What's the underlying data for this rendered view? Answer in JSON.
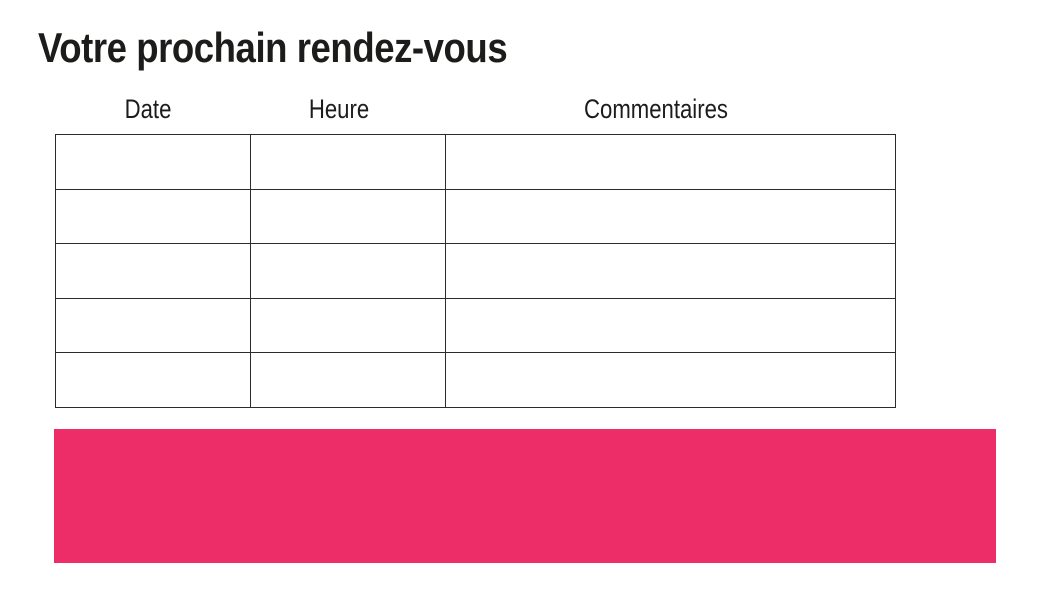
{
  "page": {
    "title": "Votre prochain rendez-vous",
    "background": "#ffffff"
  },
  "table": {
    "headers": [
      "Date",
      "Heure",
      "Commentaires"
    ],
    "rows": [
      [
        "",
        "",
        ""
      ],
      [
        "",
        "",
        ""
      ],
      [
        "",
        "",
        ""
      ],
      [
        "",
        "",
        ""
      ],
      [
        "",
        "",
        ""
      ]
    ]
  },
  "banner": {
    "text": ""
  },
  "colors": {
    "text": "#1c1c1a",
    "table_border": "#2b2b2b",
    "accent_pink": "#ed2d67"
  }
}
